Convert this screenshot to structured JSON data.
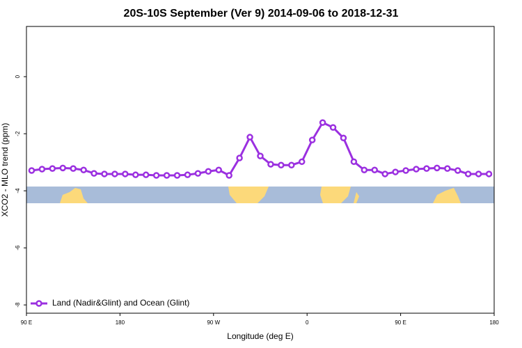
{
  "chart_data": {
    "type": "line",
    "title": "20S-10S September (Ver 9)   2014-09-06 to 2018-12-31",
    "x_label": "Longitude (deg E)",
    "y_label": "XCO2 - MLO trend (ppm)",
    "x": [
      95,
      105,
      115,
      125,
      135,
      145,
      155,
      165,
      175,
      185,
      195,
      205,
      215,
      225,
      235,
      245,
      255,
      265,
      275,
      285,
      295,
      305,
      315,
      325,
      335,
      345,
      355,
      365,
      375,
      385,
      395,
      405,
      415,
      425,
      435,
      445,
      455,
      465,
      475,
      485,
      495,
      505,
      515,
      525,
      535
    ],
    "series": [
      {
        "name": "Land (Nadir&Glint) and Ocean (Glint)",
        "color": "#9b30e0",
        "values": [
          -3.29,
          -3.24,
          -3.22,
          -3.2,
          -3.22,
          -3.27,
          -3.39,
          -3.41,
          -3.41,
          -3.41,
          -3.44,
          -3.44,
          -3.46,
          -3.46,
          -3.46,
          -3.44,
          -3.39,
          -3.32,
          -3.27,
          -3.46,
          -2.85,
          -2.12,
          -2.78,
          -3.07,
          -3.1,
          -3.1,
          -2.98,
          -2.22,
          -1.61,
          -1.78,
          -2.15,
          -2.98,
          -3.27,
          -3.27,
          -3.41,
          -3.34,
          -3.29,
          -3.24,
          -3.22,
          -3.2,
          -3.22,
          -3.29,
          -3.41,
          -3.41,
          -3.41
        ]
      }
    ],
    "xlim": [
      90,
      540
    ],
    "ylim": [
      -8.29,
      1.76
    ],
    "xticks": [
      {
        "value": 90,
        "label": "90 E"
      },
      {
        "value": 180,
        "label": "180"
      },
      {
        "value": 270,
        "label": "90 W"
      },
      {
        "value": 360,
        "label": "0"
      },
      {
        "value": 450,
        "label": "90 E"
      },
      {
        "value": 540,
        "label": "180"
      }
    ],
    "yticks": [
      -8,
      -6,
      -4,
      -2,
      0
    ],
    "legend": "bottom-left"
  }
}
